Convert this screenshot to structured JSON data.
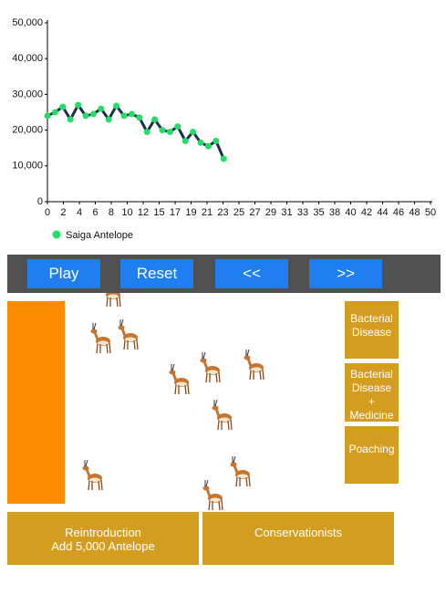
{
  "chart_data": {
    "type": "line",
    "x": [
      0,
      1,
      2,
      3,
      4,
      5,
      6,
      7,
      8,
      9,
      10,
      11,
      12,
      13,
      14,
      15,
      16,
      17,
      18,
      19,
      20,
      21,
      22,
      23
    ],
    "series": [
      {
        "name": "Saiga Antelope",
        "color": "#1b2f4f",
        "marker_color": "#22dd66",
        "values": [
          24000,
          25000,
          26500,
          23000,
          27000,
          24000,
          24500,
          26000,
          23000,
          26800,
          24000,
          24500,
          23500,
          19500,
          23000,
          20000,
          19500,
          21000,
          17000,
          19500,
          16500,
          15500,
          17000,
          12000
        ]
      }
    ],
    "xlim": [
      0,
      50
    ],
    "xticks": [
      0,
      {
        "value": 2.08,
        "label": "2"
      },
      {
        "value": 4.17,
        "label": "4"
      },
      {
        "value": 6.25,
        "label": "6"
      },
      {
        "value": 8.33,
        "label": "8"
      },
      {
        "value": 10.42,
        "label": "10"
      },
      {
        "value": 12.5,
        "label": "12"
      },
      {
        "value": 14.58,
        "label": "15"
      },
      {
        "value": 16.67,
        "label": "17"
      },
      {
        "value": 18.75,
        "label": "19"
      },
      {
        "value": 20.83,
        "label": "21"
      },
      {
        "value": 22.92,
        "label": "23"
      },
      25,
      {
        "value": 27.08,
        "label": "27"
      },
      {
        "value": 29.17,
        "label": "29"
      },
      {
        "value": 31.25,
        "label": "31"
      },
      {
        "value": 33.33,
        "label": "33"
      },
      {
        "value": 35.42,
        "label": "35"
      },
      {
        "value": 37.5,
        "label": "38"
      },
      {
        "value": 39.58,
        "label": "40"
      },
      {
        "value": 41.67,
        "label": "42"
      },
      {
        "value": 43.75,
        "label": "44"
      },
      {
        "value": 45.83,
        "label": "46"
      },
      {
        "value": 47.92,
        "label": "48"
      },
      50
    ],
    "ylim": [
      0,
      50000
    ],
    "yticks": [
      0,
      {
        "value": 10000,
        "label": "10,000"
      },
      {
        "value": 20000,
        "label": "20,000"
      },
      {
        "value": 30000,
        "label": "30,000"
      },
      {
        "value": 40000,
        "label": "40,000"
      },
      {
        "value": 50000,
        "label": "50,000"
      }
    ]
  },
  "controls": {
    "play": "Play",
    "reset": "Reset",
    "back": "<<",
    "forward": ">>"
  },
  "events": {
    "bacterial_disease": [
      "Bacterial",
      "Disease"
    ],
    "bacterial_disease_medicine": [
      "Bacterial",
      "Disease",
      "+",
      "Medicine"
    ],
    "poaching": [
      "Poaching"
    ],
    "reintroduction": [
      "Reintroduction",
      "Add 5,000 Antelope"
    ],
    "conservationists": [
      "Conservationists"
    ]
  }
}
